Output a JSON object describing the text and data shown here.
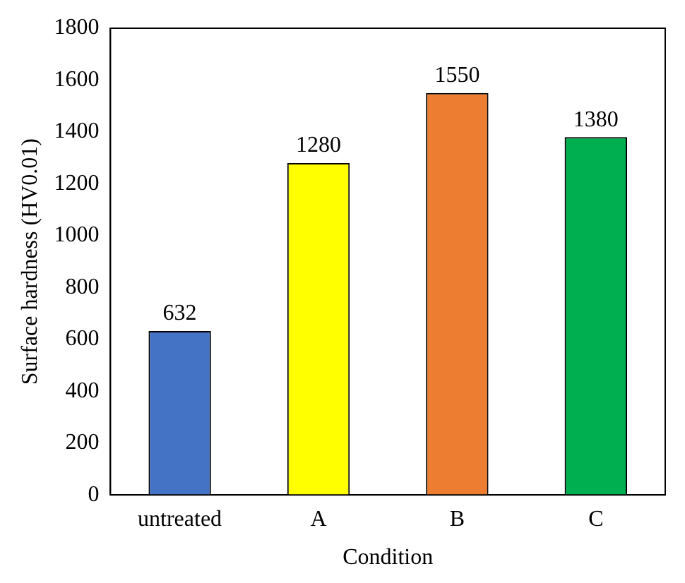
{
  "chart_data": {
    "type": "bar",
    "xlabel": "Condition",
    "ylabel": "Surface hardness (HV0.01)",
    "categories": [
      "untreated",
      "A",
      "B",
      "C"
    ],
    "values": [
      632,
      1280,
      1550,
      1380
    ],
    "colors": [
      "#4472c4",
      "#ffff00",
      "#ed7d31",
      "#00b050"
    ],
    "ylim": [
      0,
      1800
    ],
    "yticks": [
      0,
      200,
      400,
      600,
      800,
      1000,
      1200,
      1400,
      1600,
      1800
    ],
    "grid": false,
    "legend": false,
    "data_labels": true
  }
}
